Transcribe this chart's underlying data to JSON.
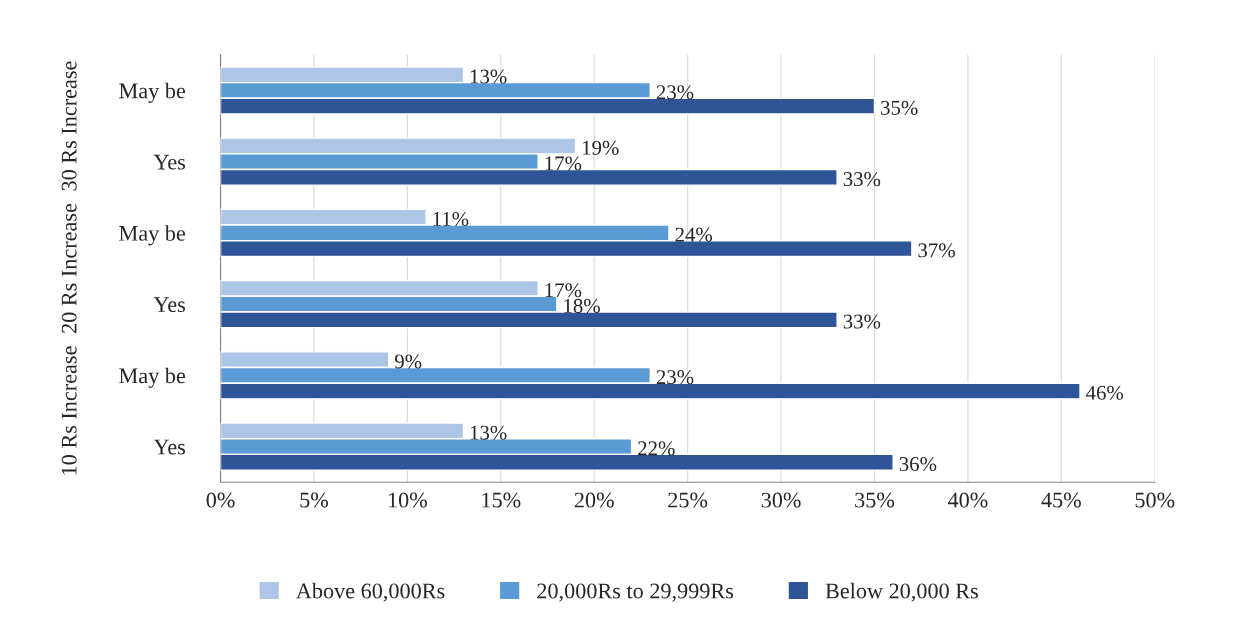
{
  "chart_data": {
    "type": "bar",
    "orientation": "horizontal",
    "categories": [
      "May be",
      "Yes",
      "May be",
      "Yes",
      "May be",
      "Yes"
    ],
    "annotations": [
      "30 Rs Increase",
      "20 Rs Increase",
      "10 Rs Increase"
    ],
    "series": [
      {
        "name": "Above 60,000Rs",
        "color": "#adc6e8",
        "values": [
          13,
          19,
          11,
          17,
          9,
          13
        ],
        "value_labels": [
          "13%",
          "19%",
          "11%",
          "17%",
          "9%",
          "13%"
        ]
      },
      {
        "name": "20,000Rs to 29,999Rs",
        "color": "#5b9bd5",
        "values": [
          23,
          17,
          24,
          18,
          23,
          22
        ],
        "value_labels": [
          "23%",
          "17%",
          "24%",
          "18%",
          "23%",
          "22%"
        ]
      },
      {
        "name": "Below 20,000 Rs",
        "color": "#2e5597",
        "values": [
          35,
          33,
          37,
          33,
          46,
          36
        ],
        "value_labels": [
          "35%",
          "33%",
          "37%",
          "33%",
          "46%",
          "36%"
        ]
      }
    ],
    "xlim": [
      0,
      50
    ],
    "xticks": [
      {
        "value": 0,
        "label": "0%"
      },
      {
        "value": 5,
        "label": "5%"
      },
      {
        "value": 10,
        "label": "10%"
      },
      {
        "value": 15,
        "label": "15%"
      },
      {
        "value": 20,
        "label": "20%"
      },
      {
        "value": 25,
        "label": "25%"
      },
      {
        "value": 30,
        "label": "30%"
      },
      {
        "value": 35,
        "label": "35%"
      },
      {
        "value": 40,
        "label": "40%"
      },
      {
        "value": 45,
        "label": "45%"
      },
      {
        "value": 50,
        "label": "50%"
      }
    ],
    "grid": "x",
    "legend": "bottom"
  }
}
